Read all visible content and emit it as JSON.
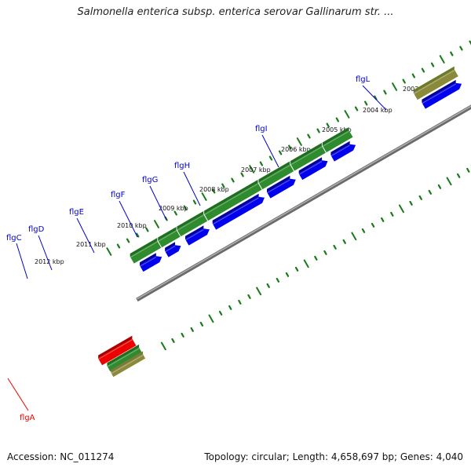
{
  "title": "Salmonella enterica subsp. enterica serovar Gallinarum str. ...",
  "footer": {
    "accession": "Accession: NC_011274",
    "topology": "Topology: circular; Length: 4,658,697 bp; Genes: 4,040"
  },
  "colors": {
    "backbone": "#888888",
    "cds_green": "#2e8b2e",
    "cds_olive": "#8a8a3a",
    "gene_blue": "#0000ee",
    "gene_red": "#ee0000",
    "gene_pink": "#e87a80",
    "tick_green": "#1a7a1a",
    "label_blue": "#0000cc",
    "label_red": "#ee0000"
  },
  "kbp_labels": [
    "2012 kbp",
    "2011 kbp",
    "2010 kbp",
    "2009 kbp",
    "2008 kbp",
    "2007 kbp",
    "2006 kbp",
    "2005 kbp",
    "2004 kbp",
    "2003 kbp"
  ],
  "genes": [
    {
      "name": "flgC",
      "color": "blue"
    },
    {
      "name": "flgD",
      "color": "blue"
    },
    {
      "name": "flgE",
      "color": "blue"
    },
    {
      "name": "flgF",
      "color": "blue"
    },
    {
      "name": "flgG",
      "color": "blue"
    },
    {
      "name": "flgH",
      "color": "blue"
    },
    {
      "name": "flgI",
      "color": "blue"
    },
    {
      "name": "flgL",
      "color": "blue"
    },
    {
      "name": "flgA",
      "color": "red"
    }
  ]
}
